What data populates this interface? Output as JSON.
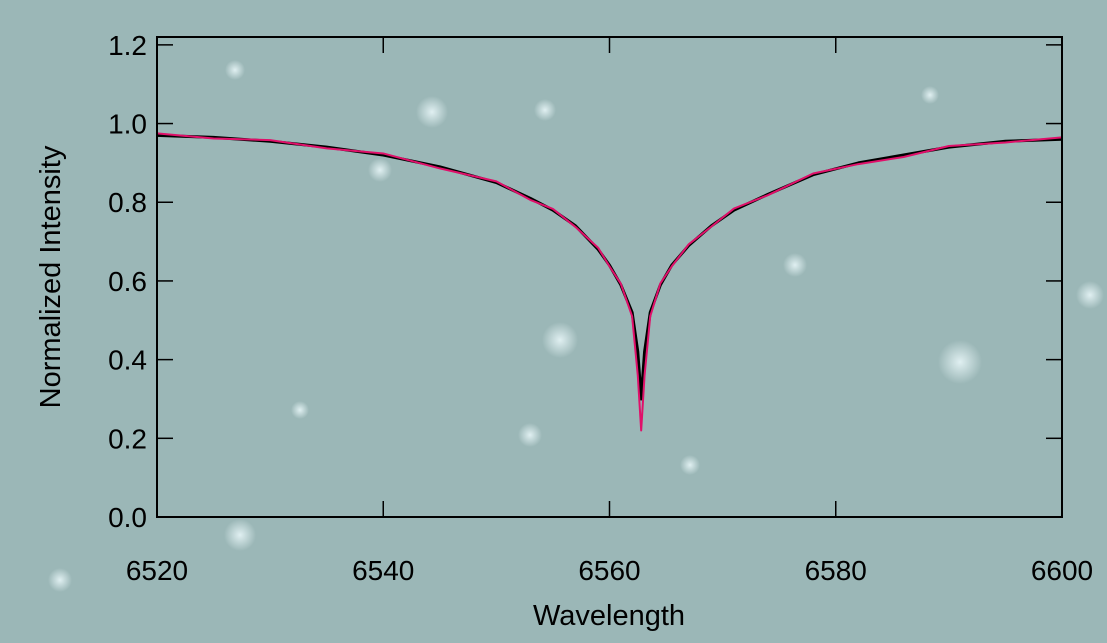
{
  "chart_data": {
    "type": "line",
    "x_label": "Wavelength",
    "y_label": "Normalized Intensity",
    "x": [
      6520,
      6525,
      6530,
      6535,
      6540,
      6545,
      6550,
      6553,
      6555,
      6557,
      6559,
      6560,
      6561,
      6562,
      6562.5,
      6562.8,
      6563.1,
      6563.6,
      6564.5,
      6565.5,
      6567,
      6569,
      6571,
      6574,
      6578,
      6582,
      6586,
      6590,
      6595,
      6600
    ],
    "series": [
      {
        "color": "#000000",
        "values": [
          0.97,
          0.965,
          0.955,
          0.94,
          0.92,
          0.89,
          0.85,
          0.81,
          0.78,
          0.74,
          0.68,
          0.64,
          0.59,
          0.52,
          0.42,
          0.3,
          0.42,
          0.52,
          0.59,
          0.64,
          0.69,
          0.74,
          0.78,
          0.82,
          0.87,
          0.9,
          0.92,
          0.94,
          0.955,
          0.96
        ]
      },
      {
        "color": "#e0106a",
        "values": [
          0.975,
          0.962,
          0.958,
          0.937,
          0.924,
          0.886,
          0.853,
          0.806,
          0.783,
          0.737,
          0.684,
          0.637,
          0.593,
          0.51,
          0.36,
          0.22,
          0.36,
          0.51,
          0.594,
          0.637,
          0.693,
          0.738,
          0.784,
          0.818,
          0.873,
          0.897,
          0.915,
          0.943,
          0.952,
          0.965
        ]
      }
    ],
    "xlim": [
      6520,
      6600
    ],
    "xticks": [
      6520,
      6540,
      6560,
      6580,
      6600
    ],
    "ylim": [
      0,
      1.22
    ],
    "yticks": [
      {
        "value": 0,
        "label": "0.0"
      },
      {
        "value": 0.2,
        "label": "0.2"
      },
      {
        "value": 0.4,
        "label": "0.4"
      },
      {
        "value": 0.6,
        "label": "0.6"
      },
      {
        "value": 0.8,
        "label": "0.8"
      },
      {
        "value": 1.0,
        "label": "1.0"
      },
      {
        "value": 1.2,
        "label": "1.2"
      }
    ]
  }
}
